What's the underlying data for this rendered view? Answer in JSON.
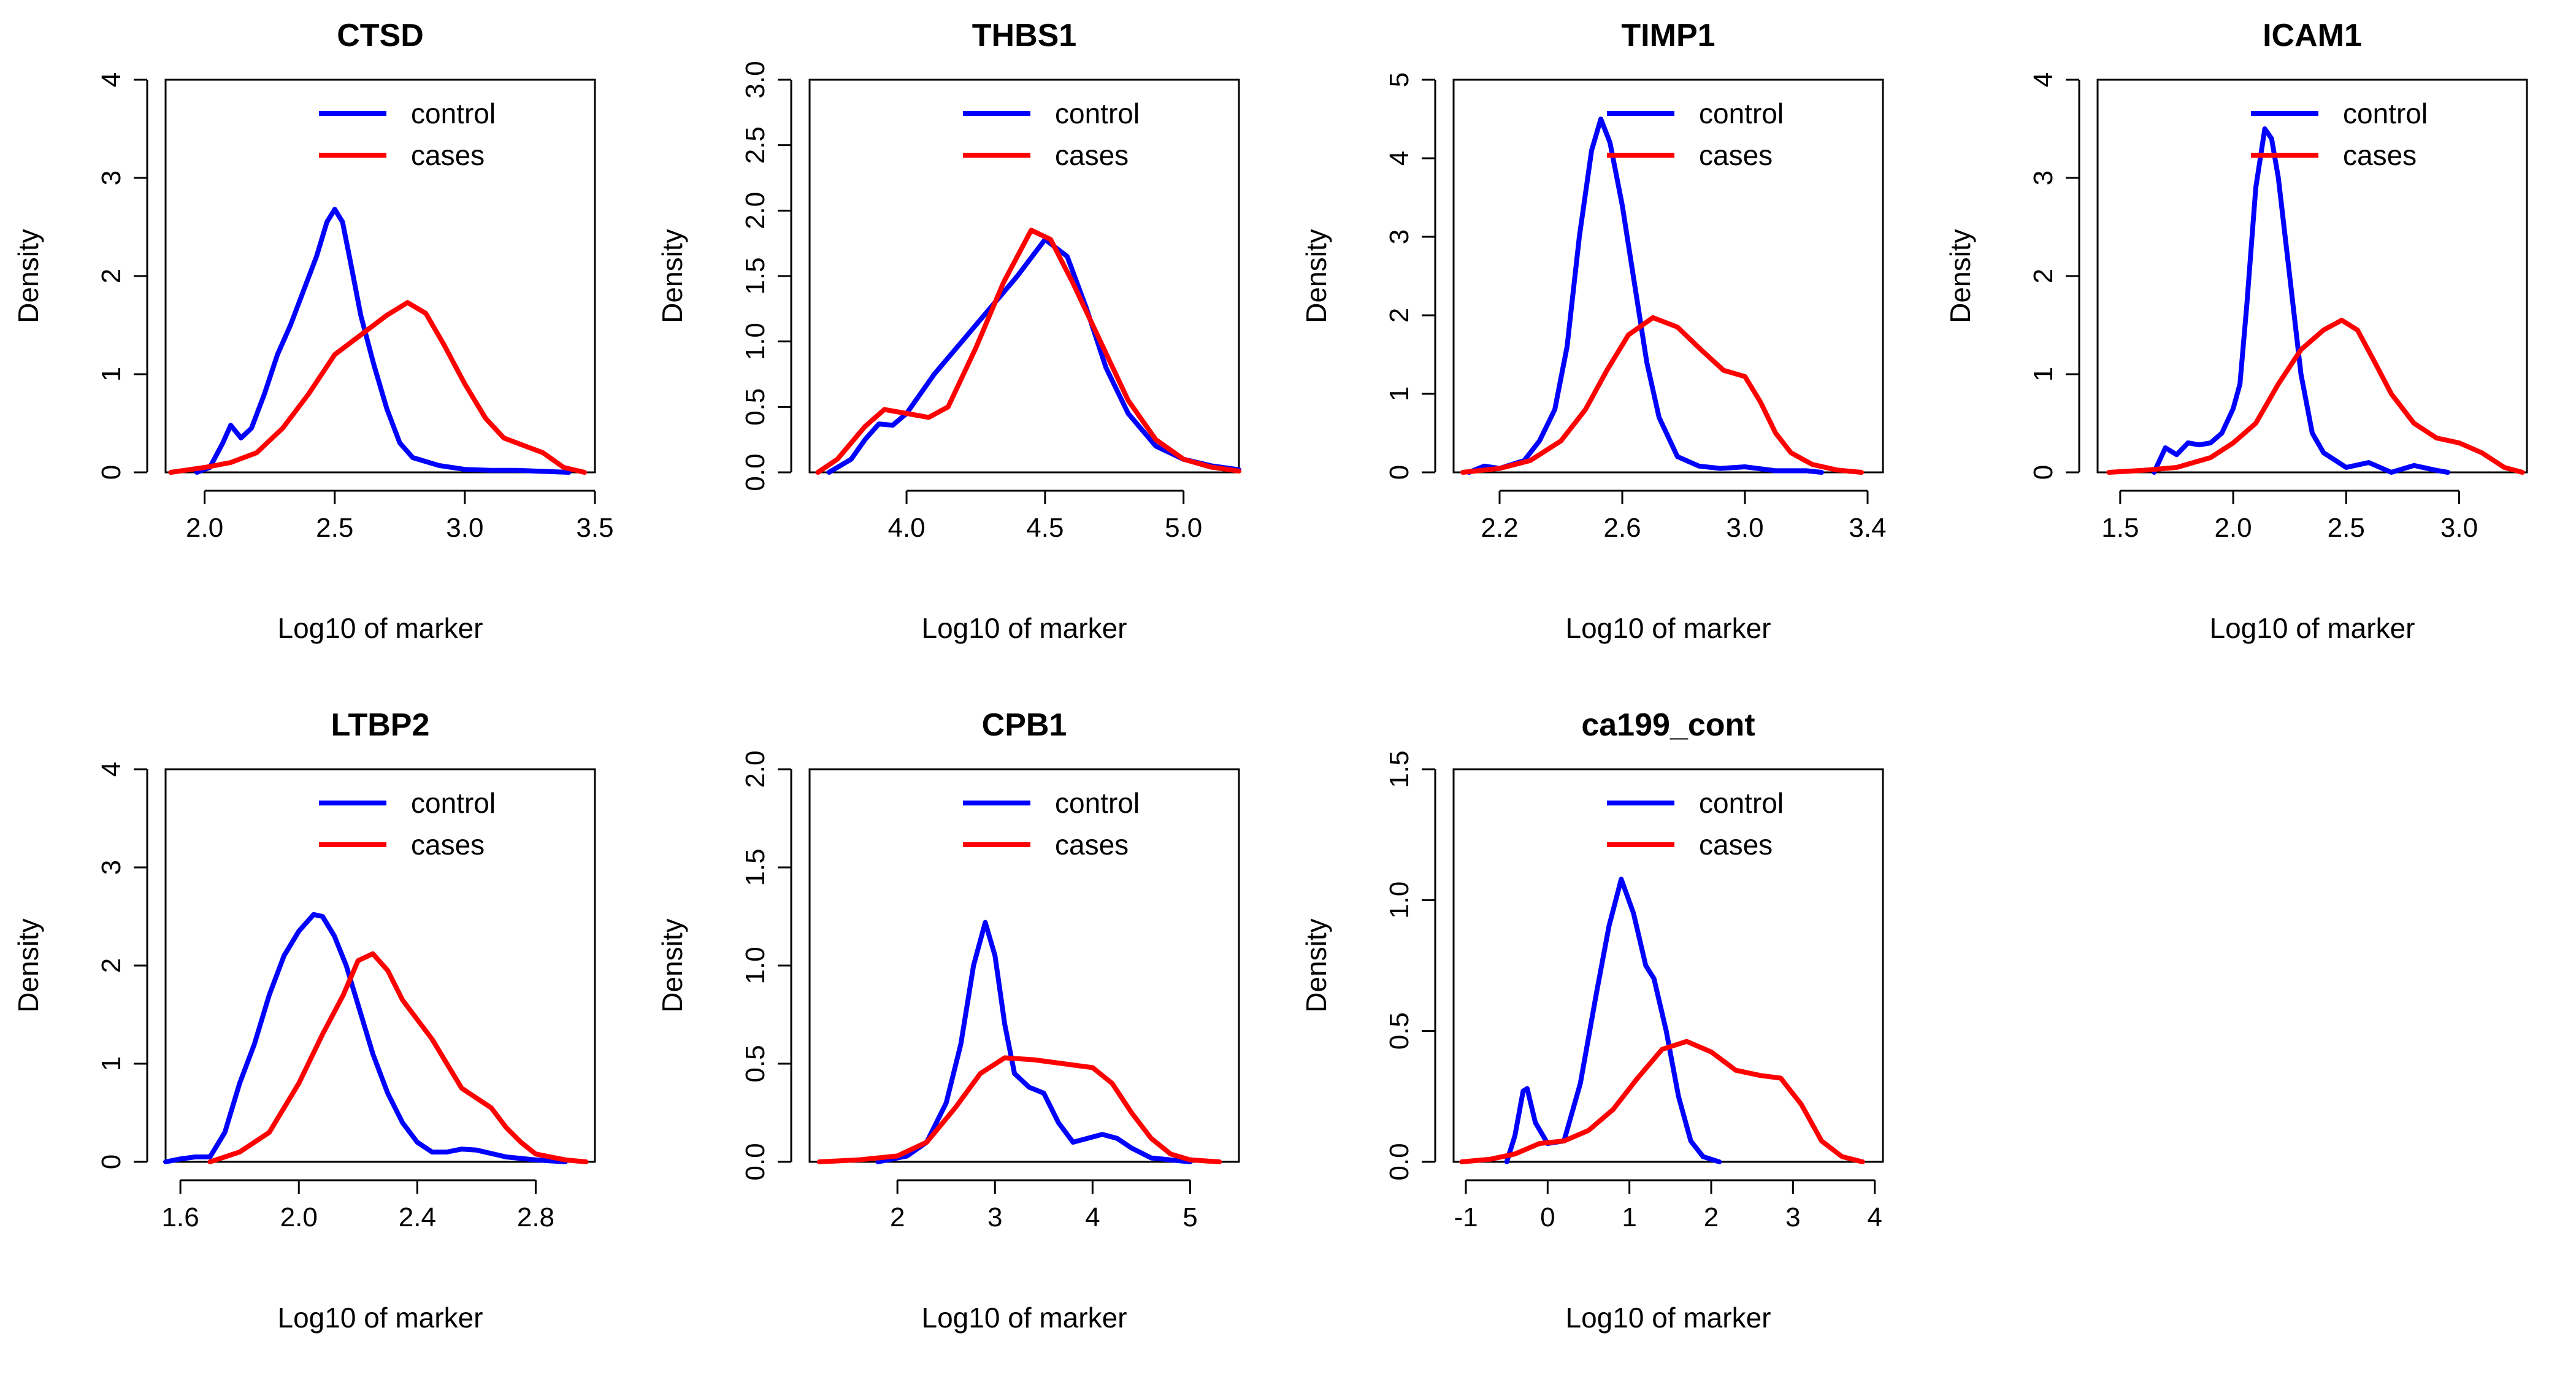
{
  "chart_data": [
    {
      "type": "line",
      "title": "CTSD",
      "xlabel": "Log10 of marker",
      "ylabel": "Density",
      "xlim": [
        1.85,
        3.5
      ],
      "ylim": [
        0,
        4
      ],
      "xticks": [
        2.0,
        2.5,
        3.0,
        3.5
      ],
      "xtick_labels": [
        "2.0",
        "2.5",
        "3.0",
        "3.5"
      ],
      "yticks": [
        0,
        1,
        2,
        3,
        4
      ],
      "ytick_labels": [
        "0",
        "1",
        "2",
        "3",
        "4"
      ],
      "legend": {
        "position": "top-right",
        "entries": [
          "control",
          "cases"
        ]
      },
      "series": [
        {
          "name": "control",
          "color": "#0000ff",
          "x": [
            1.97,
            2.02,
            2.07,
            2.1,
            2.14,
            2.18,
            2.23,
            2.28,
            2.33,
            2.38,
            2.43,
            2.47,
            2.5,
            2.53,
            2.56,
            2.6,
            2.65,
            2.7,
            2.75,
            2.8,
            2.9,
            3.0,
            3.1,
            3.2,
            3.3,
            3.4
          ],
          "y": [
            0.0,
            0.05,
            0.3,
            0.48,
            0.35,
            0.45,
            0.8,
            1.2,
            1.5,
            1.85,
            2.2,
            2.55,
            2.68,
            2.55,
            2.15,
            1.6,
            1.1,
            0.65,
            0.3,
            0.15,
            0.07,
            0.03,
            0.02,
            0.02,
            0.01,
            0.0
          ]
        },
        {
          "name": "cases",
          "color": "#ff0000",
          "x": [
            1.87,
            2.0,
            2.1,
            2.2,
            2.3,
            2.4,
            2.5,
            2.6,
            2.7,
            2.78,
            2.85,
            2.92,
            3.0,
            3.08,
            3.15,
            3.22,
            3.3,
            3.38,
            3.46
          ],
          "y": [
            0.0,
            0.05,
            0.1,
            0.2,
            0.45,
            0.8,
            1.2,
            1.4,
            1.6,
            1.73,
            1.62,
            1.3,
            0.9,
            0.55,
            0.35,
            0.28,
            0.2,
            0.05,
            0.0
          ]
        }
      ]
    },
    {
      "type": "line",
      "title": "THBS1",
      "xlabel": "Log10 of marker",
      "ylabel": "Density",
      "xlim": [
        3.65,
        5.2
      ],
      "ylim": [
        0,
        3.0
      ],
      "xticks": [
        4.0,
        4.5,
        5.0
      ],
      "xtick_labels": [
        "4.0",
        "4.5",
        "5.0"
      ],
      "yticks": [
        0,
        0.5,
        1.0,
        1.5,
        2.0,
        2.5,
        3.0
      ],
      "ytick_labels": [
        "0.0",
        "0.5",
        "1.0",
        "1.5",
        "2.0",
        "2.5",
        "3.0"
      ],
      "legend": {
        "position": "top-right",
        "entries": [
          "control",
          "cases"
        ]
      },
      "series": [
        {
          "name": "control",
          "color": "#0000ff",
          "x": [
            3.72,
            3.8,
            3.85,
            3.9,
            3.95,
            4.0,
            4.1,
            4.2,
            4.3,
            4.4,
            4.5,
            4.58,
            4.65,
            4.72,
            4.8,
            4.9,
            5.0,
            5.1,
            5.2
          ],
          "y": [
            0.0,
            0.1,
            0.25,
            0.37,
            0.36,
            0.45,
            0.75,
            1.0,
            1.25,
            1.5,
            1.78,
            1.65,
            1.25,
            0.8,
            0.45,
            0.2,
            0.1,
            0.05,
            0.02
          ]
        },
        {
          "name": "cases",
          "color": "#ff0000",
          "x": [
            3.68,
            3.75,
            3.85,
            3.92,
            4.0,
            4.08,
            4.15,
            4.25,
            4.35,
            4.45,
            4.52,
            4.6,
            4.7,
            4.8,
            4.9,
            5.0,
            5.1,
            5.2
          ],
          "y": [
            0.0,
            0.1,
            0.35,
            0.48,
            0.45,
            0.42,
            0.5,
            0.95,
            1.45,
            1.85,
            1.78,
            1.45,
            1.0,
            0.55,
            0.25,
            0.1,
            0.04,
            0.01
          ]
        }
      ]
    },
    {
      "type": "line",
      "title": "TIMP1",
      "xlabel": "Log10 of marker",
      "ylabel": "Density",
      "xlim": [
        2.05,
        3.45
      ],
      "ylim": [
        0,
        5
      ],
      "xticks": [
        2.2,
        2.6,
        3.0,
        3.4
      ],
      "xtick_labels": [
        "2.2",
        "2.6",
        "3.0",
        "3.4"
      ],
      "legend": {
        "position": "top-right",
        "entries": [
          "control",
          "cases"
        ]
      },
      "yticks": [
        0,
        1,
        2,
        3,
        4,
        5
      ],
      "ytick_labels": [
        "0",
        "1",
        "2",
        "3",
        "4",
        "5"
      ],
      "series": [
        {
          "name": "control",
          "color": "#0000ff",
          "x": [
            2.1,
            2.15,
            2.2,
            2.28,
            2.33,
            2.38,
            2.42,
            2.46,
            2.5,
            2.53,
            2.56,
            2.6,
            2.64,
            2.68,
            2.72,
            2.78,
            2.85,
            2.92,
            3.0,
            3.1,
            3.2,
            3.25
          ],
          "y": [
            0.0,
            0.08,
            0.05,
            0.15,
            0.4,
            0.8,
            1.6,
            3.0,
            4.1,
            4.5,
            4.2,
            3.4,
            2.4,
            1.4,
            0.7,
            0.2,
            0.08,
            0.05,
            0.07,
            0.02,
            0.02,
            0.0
          ]
        },
        {
          "name": "cases",
          "color": "#ff0000",
          "x": [
            2.08,
            2.2,
            2.3,
            2.4,
            2.48,
            2.55,
            2.62,
            2.7,
            2.78,
            2.86,
            2.93,
            3.0,
            3.05,
            3.1,
            3.15,
            3.22,
            3.3,
            3.38
          ],
          "y": [
            0.0,
            0.05,
            0.15,
            0.4,
            0.8,
            1.3,
            1.75,
            1.97,
            1.85,
            1.55,
            1.3,
            1.22,
            0.9,
            0.5,
            0.25,
            0.1,
            0.03,
            0.0
          ]
        }
      ]
    },
    {
      "type": "line",
      "title": "ICAM1",
      "xlabel": "Log10 of marker",
      "ylabel": "Density",
      "xlim": [
        1.4,
        3.3
      ],
      "ylim": [
        0,
        4
      ],
      "xticks": [
        1.5,
        2.0,
        2.5,
        3.0
      ],
      "xtick_labels": [
        "1.5",
        "2.0",
        "2.5",
        "3.0"
      ],
      "yticks": [
        0,
        1,
        2,
        3,
        4
      ],
      "ytick_labels": [
        "0",
        "1",
        "2",
        "3",
        "4"
      ],
      "legend": {
        "position": "top-right",
        "entries": [
          "control",
          "cases"
        ]
      },
      "series": [
        {
          "name": "control",
          "color": "#0000ff",
          "x": [
            1.65,
            1.7,
            1.75,
            1.8,
            1.85,
            1.9,
            1.95,
            2.0,
            2.03,
            2.06,
            2.1,
            2.14,
            2.17,
            2.2,
            2.25,
            2.3,
            2.35,
            2.4,
            2.5,
            2.6,
            2.7,
            2.8,
            2.9,
            2.95
          ],
          "y": [
            0.0,
            0.25,
            0.18,
            0.3,
            0.28,
            0.3,
            0.4,
            0.65,
            0.9,
            1.7,
            2.9,
            3.5,
            3.4,
            3.0,
            2.0,
            1.0,
            0.4,
            0.2,
            0.05,
            0.1,
            0.0,
            0.07,
            0.02,
            0.0
          ]
        },
        {
          "name": "cases",
          "color": "#ff0000",
          "x": [
            1.45,
            1.6,
            1.75,
            1.9,
            2.0,
            2.1,
            2.2,
            2.3,
            2.4,
            2.48,
            2.55,
            2.62,
            2.7,
            2.8,
            2.9,
            3.0,
            3.1,
            3.2,
            3.28
          ],
          "y": [
            0.0,
            0.02,
            0.05,
            0.15,
            0.3,
            0.5,
            0.9,
            1.25,
            1.45,
            1.55,
            1.45,
            1.15,
            0.8,
            0.5,
            0.35,
            0.3,
            0.2,
            0.05,
            0.0
          ]
        }
      ]
    },
    {
      "type": "line",
      "title": "LTBP2",
      "xlabel": "Log10 of marker",
      "ylabel": "Density",
      "xlim": [
        1.55,
        3.0
      ],
      "ylim": [
        0,
        4
      ],
      "xticks": [
        1.6,
        2.0,
        2.4,
        2.8
      ],
      "xtick_labels": [
        "1.6",
        "2.0",
        "2.4",
        "2.8"
      ],
      "yticks": [
        0,
        1,
        2,
        3,
        4
      ],
      "ytick_labels": [
        "0",
        "1",
        "2",
        "3",
        "4"
      ],
      "legend": {
        "position": "top-right",
        "entries": [
          "control",
          "cases"
        ]
      },
      "series": [
        {
          "name": "control",
          "color": "#0000ff",
          "x": [
            1.55,
            1.6,
            1.65,
            1.7,
            1.75,
            1.8,
            1.85,
            1.9,
            1.95,
            2.0,
            2.05,
            2.08,
            2.12,
            2.16,
            2.2,
            2.25,
            2.3,
            2.35,
            2.4,
            2.45,
            2.5,
            2.55,
            2.6,
            2.7,
            2.8,
            2.9
          ],
          "y": [
            0.0,
            0.03,
            0.05,
            0.05,
            0.3,
            0.8,
            1.2,
            1.7,
            2.1,
            2.35,
            2.52,
            2.5,
            2.3,
            2.0,
            1.6,
            1.1,
            0.7,
            0.4,
            0.2,
            0.1,
            0.1,
            0.13,
            0.12,
            0.05,
            0.02,
            0.0
          ]
        },
        {
          "name": "cases",
          "color": "#ff0000",
          "x": [
            1.7,
            1.8,
            1.9,
            2.0,
            2.08,
            2.15,
            2.2,
            2.25,
            2.3,
            2.35,
            2.4,
            2.45,
            2.5,
            2.55,
            2.6,
            2.65,
            2.7,
            2.75,
            2.8,
            2.9,
            2.97
          ],
          "y": [
            0.0,
            0.1,
            0.3,
            0.8,
            1.3,
            1.7,
            2.05,
            2.12,
            1.95,
            1.65,
            1.45,
            1.25,
            1.0,
            0.75,
            0.65,
            0.55,
            0.35,
            0.2,
            0.08,
            0.02,
            0.0
          ]
        }
      ]
    },
    {
      "type": "line",
      "title": "CPB1",
      "xlabel": "Log10 of marker",
      "ylabel": "Density",
      "xlim": [
        1.1,
        5.5
      ],
      "ylim": [
        0,
        2.0
      ],
      "xticks": [
        2,
        3,
        4,
        5
      ],
      "xtick_labels": [
        "2",
        "3",
        "4",
        "5"
      ],
      "yticks": [
        0,
        0.5,
        1.0,
        1.5,
        2.0
      ],
      "ytick_labels": [
        "0.0",
        "0.5",
        "1.0",
        "1.5",
        "2.0"
      ],
      "legend": {
        "position": "top-right",
        "entries": [
          "control",
          "cases"
        ]
      },
      "series": [
        {
          "name": "control",
          "color": "#0000ff",
          "x": [
            1.8,
            2.1,
            2.3,
            2.5,
            2.65,
            2.78,
            2.9,
            3.0,
            3.1,
            3.2,
            3.35,
            3.5,
            3.65,
            3.8,
            3.95,
            4.1,
            4.25,
            4.4,
            4.6,
            4.8,
            5.0
          ],
          "y": [
            0.0,
            0.03,
            0.1,
            0.3,
            0.6,
            1.0,
            1.22,
            1.05,
            0.7,
            0.45,
            0.38,
            0.35,
            0.2,
            0.1,
            0.12,
            0.14,
            0.12,
            0.07,
            0.02,
            0.01,
            0.0
          ]
        },
        {
          "name": "cases",
          "color": "#ff0000",
          "x": [
            1.2,
            1.6,
            2.0,
            2.3,
            2.6,
            2.85,
            3.1,
            3.4,
            3.7,
            4.0,
            4.2,
            4.4,
            4.6,
            4.8,
            5.0,
            5.3
          ],
          "y": [
            0.0,
            0.01,
            0.03,
            0.1,
            0.28,
            0.45,
            0.53,
            0.52,
            0.5,
            0.48,
            0.4,
            0.25,
            0.12,
            0.04,
            0.01,
            0.0
          ]
        }
      ]
    },
    {
      "type": "line",
      "title": "ca199_cont",
      "xlabel": "Log10 of marker",
      "ylabel": "Density",
      "xlim": [
        -1.15,
        4.1
      ],
      "ylim": [
        0,
        1.5
      ],
      "xticks": [
        -1,
        0,
        1,
        2,
        3,
        4
      ],
      "xtick_labels": [
        "-1",
        "0",
        "1",
        "2",
        "3",
        "4"
      ],
      "yticks": [
        0,
        0.5,
        1.0,
        1.5
      ],
      "ytick_labels": [
        "0.0",
        "0.5",
        "1.0",
        "1.5"
      ],
      "legend": {
        "position": "top-right",
        "entries": [
          "control",
          "cases"
        ]
      },
      "series": [
        {
          "name": "control",
          "color": "#0000ff",
          "x": [
            -0.5,
            -0.4,
            -0.3,
            -0.25,
            -0.15,
            0.0,
            0.2,
            0.4,
            0.6,
            0.75,
            0.9,
            1.05,
            1.2,
            1.3,
            1.45,
            1.6,
            1.75,
            1.9,
            2.1
          ],
          "y": [
            0.0,
            0.1,
            0.27,
            0.28,
            0.15,
            0.07,
            0.08,
            0.3,
            0.65,
            0.9,
            1.08,
            0.95,
            0.75,
            0.7,
            0.5,
            0.25,
            0.08,
            0.02,
            0.0
          ]
        },
        {
          "name": "cases",
          "color": "#ff0000",
          "x": [
            -1.05,
            -0.7,
            -0.4,
            -0.1,
            0.2,
            0.5,
            0.8,
            1.1,
            1.4,
            1.7,
            2.0,
            2.3,
            2.6,
            2.85,
            3.1,
            3.35,
            3.6,
            3.85
          ],
          "y": [
            0.0,
            0.01,
            0.03,
            0.07,
            0.08,
            0.12,
            0.2,
            0.32,
            0.43,
            0.46,
            0.42,
            0.35,
            0.33,
            0.32,
            0.22,
            0.08,
            0.02,
            0.0
          ]
        }
      ]
    }
  ]
}
